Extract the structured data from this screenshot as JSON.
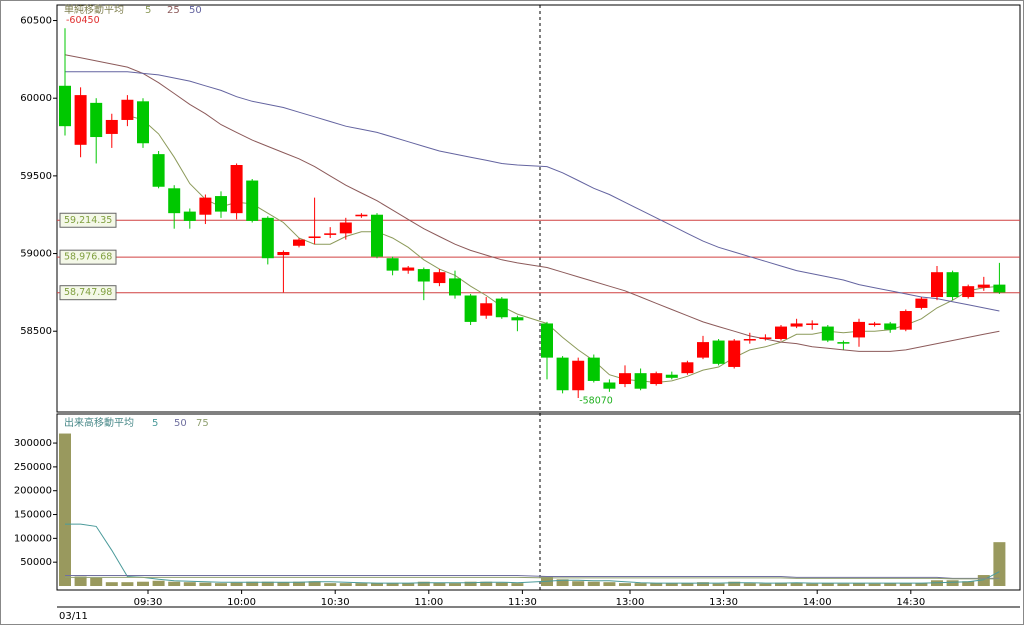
{
  "chart_data": {
    "type": "candlestick",
    "legend_title": "単純移動平均",
    "volume_legend_title": "出来高移動平均",
    "date_label": "03/11",
    "categories": [
      null,
      null,
      null,
      null,
      null,
      "09:30",
      null,
      null,
      null,
      null,
      null,
      "10:00",
      null,
      null,
      null,
      null,
      null,
      "10:30",
      null,
      null,
      null,
      null,
      null,
      "11:00",
      null,
      null,
      null,
      null,
      null,
      "11:30",
      null,
      null,
      null,
      null,
      null,
      "13:00",
      null,
      null,
      null,
      null,
      null,
      "13:30",
      null,
      null,
      null,
      null,
      null,
      "14:00",
      null,
      null,
      null,
      null,
      null,
      "14:30",
      null,
      null,
      null,
      null,
      null,
      null
    ],
    "open": [
      60080,
      59700,
      59970,
      59770,
      59860,
      59980,
      59640,
      59420,
      59270,
      59250,
      59370,
      59260,
      59470,
      59230,
      58990,
      59050,
      59100,
      59120,
      59130,
      59240,
      59250,
      58970,
      58890,
      58900,
      58810,
      58840,
      58730,
      58600,
      58710,
      58590,
      58550,
      58330,
      58120,
      58330,
      58170,
      58160,
      58230,
      58160,
      58220,
      58230,
      58330,
      58440,
      58270,
      58440,
      58450,
      58450,
      58530,
      58540,
      58530,
      58430,
      58460,
      58540,
      58550,
      58510,
      58650,
      58720,
      58880,
      58720,
      58780,
      58800
    ],
    "high": [
      60450,
      60070,
      60000,
      59900,
      60020,
      60000,
      59660,
      59440,
      59290,
      59380,
      59400,
      59580,
      59480,
      59240,
      59020,
      59100,
      59360,
      59170,
      59230,
      59260,
      59260,
      58980,
      58920,
      58910,
      58900,
      58890,
      58740,
      58720,
      58720,
      58600,
      58560,
      58340,
      58330,
      58350,
      58190,
      58280,
      58260,
      58240,
      58240,
      58310,
      58470,
      58450,
      58450,
      58490,
      58480,
      58540,
      58580,
      58570,
      58540,
      58440,
      58580,
      58560,
      58560,
      58640,
      58720,
      58920,
      58890,
      58800,
      58850,
      58940
    ],
    "low": [
      59760,
      59620,
      59580,
      59680,
      59820,
      59680,
      59420,
      59160,
      59160,
      59190,
      59230,
      59220,
      59200,
      58930,
      58750,
      59040,
      59060,
      59100,
      59090,
      59230,
      58970,
      58860,
      58870,
      58700,
      58790,
      58710,
      58540,
      58580,
      58580,
      58500,
      58190,
      58100,
      58070,
      58170,
      58110,
      58140,
      58120,
      58150,
      58190,
      58220,
      58320,
      58280,
      58260,
      58420,
      58440,
      58440,
      58520,
      58510,
      58430,
      58380,
      58400,
      58530,
      58490,
      58500,
      58640,
      58700,
      58700,
      58710,
      58760,
      58740
    ],
    "close": [
      59820,
      60020,
      59750,
      59860,
      59990,
      59710,
      59430,
      59260,
      59210,
      59360,
      59270,
      59570,
      59210,
      58970,
      59010,
      59090,
      59110,
      59130,
      59200,
      59250,
      58980,
      58890,
      58910,
      58820,
      58880,
      58730,
      58560,
      58680,
      58590,
      58570,
      58330,
      58120,
      58310,
      58180,
      58130,
      58230,
      58130,
      58230,
      58200,
      58300,
      58430,
      58290,
      58440,
      58450,
      58460,
      58530,
      58550,
      58550,
      58440,
      58420,
      58560,
      58550,
      58510,
      58630,
      58710,
      58880,
      58720,
      58790,
      58800,
      58750
    ],
    "up_color": "#ff0000",
    "down_color": "#00c800",
    "series": [
      {
        "name": "5",
        "color": "#8c9a5a",
        "values": [
          null,
          null,
          null,
          null,
          59890,
          59860,
          59770,
          59620,
          59450,
          59350,
          59300,
          59330,
          59320,
          59260,
          59200,
          59100,
          59060,
          59060,
          59110,
          59140,
          59140,
          59100,
          59040,
          58960,
          58900,
          58860,
          58790,
          58730,
          58660,
          58610,
          58550,
          58460,
          58380,
          58310,
          58220,
          58190,
          58180,
          58170,
          58180,
          58210,
          58250,
          58270,
          58330,
          58380,
          58400,
          58430,
          58480,
          58480,
          58500,
          58490,
          58500,
          58500,
          58510,
          58540,
          58580,
          58650,
          58700,
          58760,
          58780,
          58790
        ]
      },
      {
        "name": "25",
        "color": "#8c5a5a",
        "values": [
          60280,
          60260,
          60240,
          60220,
          60200,
          60160,
          60100,
          60030,
          59960,
          59900,
          59830,
          59780,
          59730,
          59690,
          59650,
          59610,
          59560,
          59500,
          59440,
          59390,
          59340,
          59280,
          59220,
          59160,
          59110,
          59060,
          59020,
          58990,
          58960,
          58940,
          58910,
          58880,
          58850,
          58820,
          58790,
          58760,
          58720,
          58680,
          58640,
          58600,
          58560,
          58530,
          58500,
          58470,
          58450,
          58430,
          58420,
          58400,
          58390,
          58380,
          58370,
          58370,
          58370,
          58380,
          58400,
          58420,
          58440,
          58460,
          58480,
          58500
        ]
      },
      {
        "name": "50",
        "color": "#6464a0",
        "values": [
          60170,
          60170,
          60170,
          60170,
          60170,
          60160,
          60150,
          60130,
          60110,
          60080,
          60050,
          60010,
          59980,
          59960,
          59940,
          59910,
          59880,
          59850,
          59820,
          59800,
          59780,
          59750,
          59720,
          59690,
          59660,
          59640,
          59620,
          59600,
          59580,
          59570,
          59560,
          59520,
          59470,
          59420,
          59380,
          59330,
          59280,
          59230,
          59180,
          59130,
          59080,
          59040,
          59010,
          58980,
          58950,
          58920,
          58890,
          58870,
          58850,
          58830,
          58800,
          58780,
          58760,
          58740,
          58720,
          58710,
          58690,
          58670,
          58650,
          58630
        ]
      }
    ],
    "levels": [
      {
        "value": 59214.35,
        "label": "59,214.35"
      },
      {
        "value": 58976.68,
        "label": "58,976.68"
      },
      {
        "value": 58747.98,
        "label": "58,747.98"
      }
    ],
    "level_color": "#d04040",
    "annotations": [
      {
        "value": 60450,
        "label": "-60450",
        "color": "#e03030"
      },
      {
        "value": 58070,
        "label": "-58070",
        "color": "#20b020"
      }
    ],
    "ylim": [
      57980,
      60600
    ],
    "yticks": [
      58500,
      59000,
      59500,
      60000,
      60500
    ],
    "volume": [
      320000,
      20000,
      17000,
      8000,
      8000,
      9000,
      11000,
      9000,
      8000,
      7000,
      6000,
      7000,
      9000,
      9000,
      8000,
      9000,
      10000,
      6000,
      6000,
      6000,
      6000,
      6000,
      6000,
      9000,
      7000,
      6000,
      9000,
      9000,
      7000,
      6000,
      20000,
      14000,
      10000,
      9000,
      8000,
      6000,
      6000,
      6000,
      6000,
      6000,
      8000,
      5000,
      9000,
      6000,
      5000,
      7000,
      7000,
      5000,
      6000,
      5000,
      6000,
      5000,
      6000,
      6000,
      6000,
      12000,
      12000,
      10000,
      23000,
      92000
    ],
    "volume_color": "#99995e",
    "volume_series": [
      {
        "name": "5",
        "color": "#4a9a9a",
        "values": [
          130000,
          130000,
          125000,
          75000,
          20000,
          18000,
          14000,
          11000,
          10000,
          9000,
          8000,
          8000,
          8000,
          8000,
          8000,
          8000,
          9000,
          9000,
          8000,
          7000,
          6000,
          6000,
          6000,
          7000,
          7000,
          7000,
          7000,
          8000,
          8000,
          7000,
          10000,
          12000,
          12000,
          11000,
          11000,
          9000,
          7000,
          6000,
          6000,
          6000,
          6000,
          6000,
          7000,
          7000,
          6000,
          6000,
          7000,
          6000,
          6000,
          6000,
          6000,
          6000,
          6000,
          6000,
          6000,
          7000,
          8000,
          9000,
          13000,
          30000
        ]
      },
      {
        "name": "50",
        "color": "#7070a0",
        "values": [
          22000,
          22000,
          22000,
          22000,
          22000,
          22000,
          22000,
          22000,
          22000,
          22000,
          22000,
          22000,
          22000,
          22000,
          22000,
          22000,
          22000,
          22000,
          22000,
          22000,
          22000,
          22000,
          22000,
          22000,
          22000,
          22000,
          22000,
          22000,
          22000,
          22000,
          20000,
          20000,
          20000,
          20000,
          20000,
          20000,
          20000,
          20000,
          20000,
          20000,
          20000,
          20000,
          20000,
          20000,
          20000,
          20000,
          18000,
          18000,
          18000,
          18000,
          18000,
          18000,
          18000,
          18000,
          18000,
          18000,
          16000,
          16000,
          16000,
          16000
        ]
      },
      {
        "name": "75",
        "color": "#90a070",
        "values": [
          18000,
          18000,
          18000,
          18000,
          18000,
          18000,
          18000,
          18000,
          18000,
          18000,
          18000,
          18000,
          18000,
          18000,
          18000,
          18000,
          18000,
          18000,
          18000,
          18000,
          18000,
          18000,
          18000,
          18000,
          18000,
          18000,
          18000,
          18000,
          18000,
          18000,
          17000,
          17000,
          17000,
          17000,
          17000,
          17000,
          17000,
          17000,
          17000,
          17000,
          17000,
          17000,
          17000,
          17000,
          17000,
          17000,
          16000,
          16000,
          16000,
          16000,
          16000,
          16000,
          16000,
          16000,
          16000,
          16000,
          15000,
          15000,
          15000,
          15000
        ]
      }
    ],
    "volume_ylim": [
      0,
      361000
    ],
    "volume_yticks": [
      50000,
      100000,
      150000,
      200000,
      250000,
      300000
    ]
  }
}
